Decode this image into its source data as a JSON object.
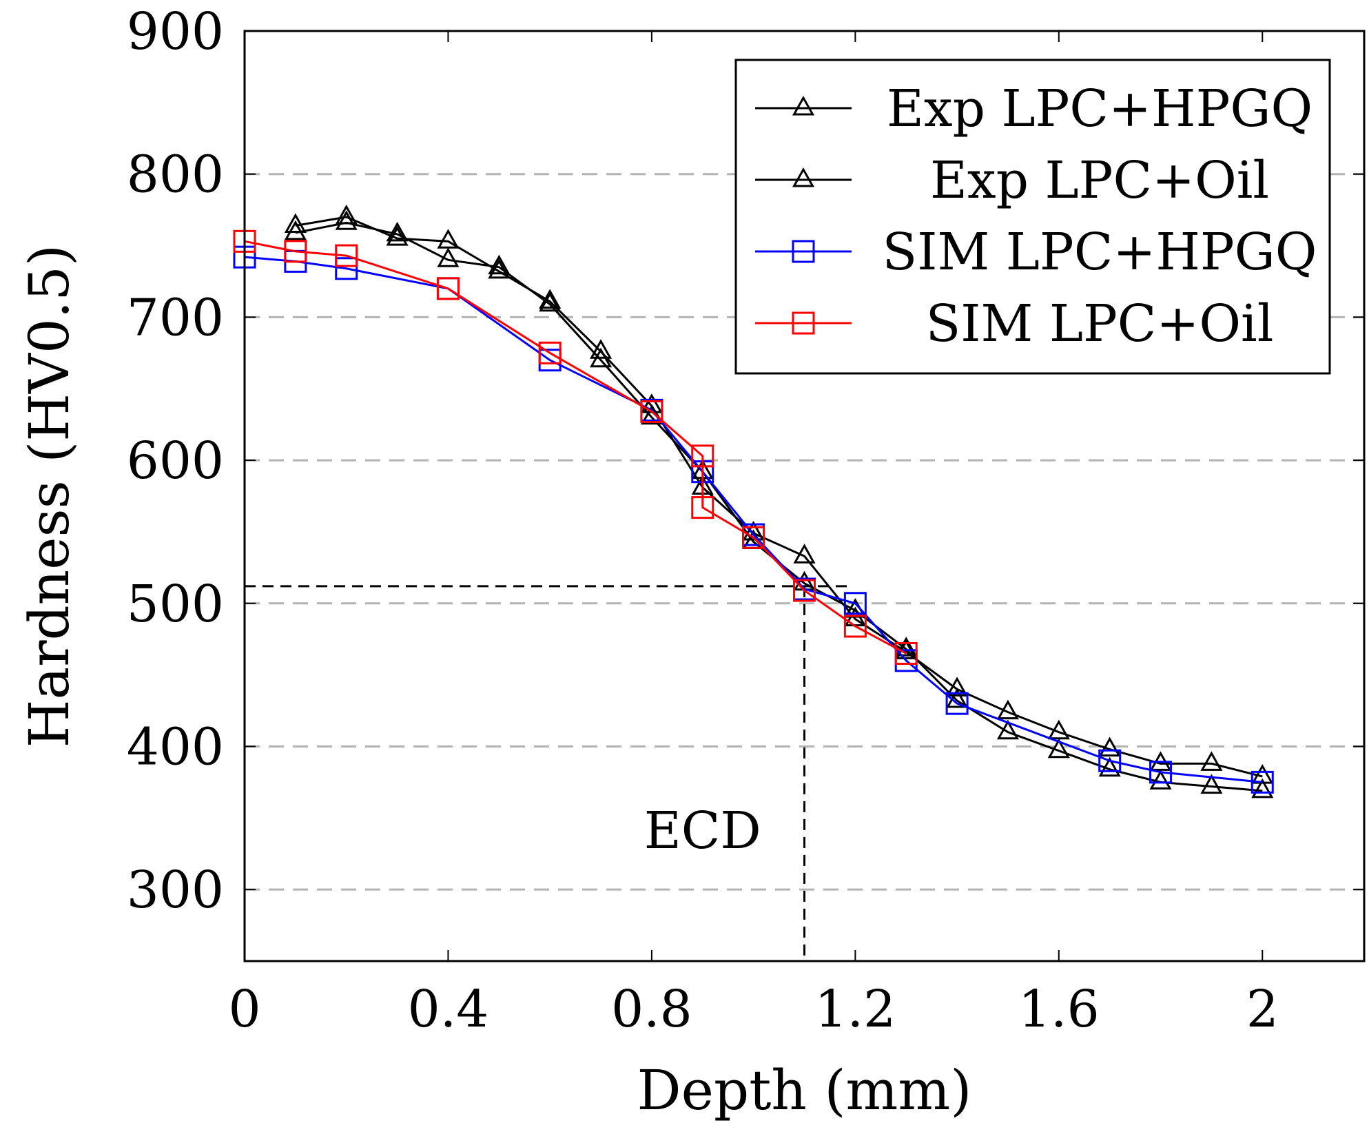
{
  "chart_data": {
    "type": "line",
    "xlabel": "Depth (mm)",
    "ylabel": "Hardness (HV0.5)",
    "xlim": [
      0,
      2.2
    ],
    "ylim": [
      250,
      900
    ],
    "xticks": [
      0,
      0.4,
      0.8,
      1.2,
      1.6,
      2
    ],
    "xtick_labels": [
      "0",
      "0.4",
      "0.8",
      "1.2",
      "1.6",
      "2"
    ],
    "yticks": [
      300,
      400,
      500,
      600,
      700,
      800,
      900
    ],
    "ytick_labels": [
      "300",
      "400",
      "500",
      "600",
      "700",
      "800",
      "900"
    ],
    "grid": "horizontal dashed gray",
    "legend_position": "top-right",
    "series": [
      {
        "name": "Exp LPC+HPGQ",
        "color": "#000000",
        "marker": "triangle",
        "x": [
          0.1,
          0.2,
          0.3,
          0.4,
          0.5,
          0.6,
          0.7,
          0.8,
          0.9,
          1.0,
          1.1,
          1.2,
          1.3,
          1.4,
          1.5,
          1.6,
          1.7,
          1.8,
          1.9,
          2.0
        ],
        "y": [
          764,
          770,
          755,
          753,
          732,
          711,
          676,
          638,
          581,
          549,
          533,
          489,
          466,
          440,
          424,
          410,
          398,
          388,
          388,
          379
        ]
      },
      {
        "name": "Exp LPC+Oil",
        "color": "#000000",
        "marker": "triangle",
        "x": [
          0.1,
          0.2,
          0.3,
          0.4,
          0.5,
          0.6,
          0.7,
          0.8,
          0.9,
          1.0,
          1.1,
          1.2,
          1.3,
          1.4,
          1.5,
          1.6,
          1.7,
          1.8,
          1.9,
          2.0
        ],
        "y": [
          759,
          766,
          758,
          740,
          735,
          709,
          670,
          630,
          592,
          543,
          514,
          495,
          468,
          432,
          410,
          397,
          384,
          375,
          372,
          369
        ]
      },
      {
        "name": "SIM LPC+HPGQ",
        "color": "#0000ff",
        "marker": "square",
        "x": [
          0,
          0.1,
          0.2,
          0.4,
          0.6,
          0.8,
          0.9,
          1.0,
          1.1,
          1.2,
          1.3,
          1.4,
          1.7,
          1.8,
          2.0
        ],
        "y": [
          742,
          739,
          734,
          720,
          670,
          635,
          592,
          548,
          510,
          500,
          460,
          430,
          390,
          382,
          375
        ]
      },
      {
        "name": "SIM LPC+Oil",
        "color": "#ff0000",
        "marker": "square",
        "x": [
          0,
          0.1,
          0.2,
          0.4,
          0.6,
          0.8,
          0.9,
          0.9,
          1.0,
          1.1,
          1.2,
          1.3
        ],
        "y": [
          753,
          746,
          743,
          720,
          675,
          634,
          603,
          567,
          546,
          509,
          484,
          465
        ]
      }
    ],
    "annotations": [
      {
        "text": "ECD",
        "x": 1.1,
        "y": 512
      }
    ]
  }
}
